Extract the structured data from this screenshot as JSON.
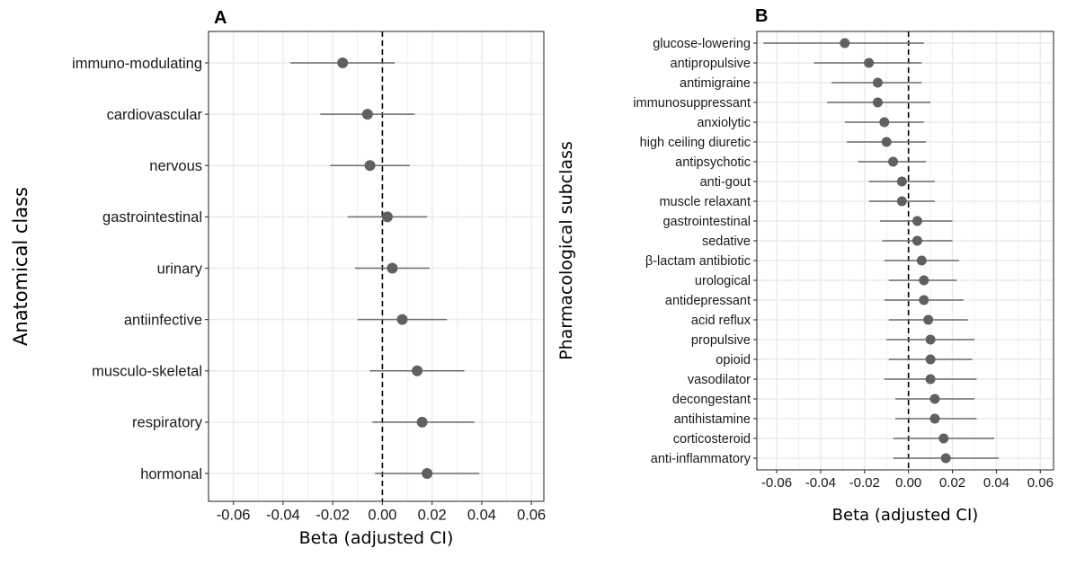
{
  "chart_data": [
    {
      "type": "scatter",
      "panel": "A",
      "xlabel": "Beta (adjusted CI)",
      "ylabel": "Anatomical class",
      "xlim": [
        -0.07,
        0.065
      ],
      "x_ticks": [
        -0.06,
        -0.04,
        -0.02,
        0.0,
        0.02,
        0.04,
        0.06
      ],
      "x_tick_labels": [
        "-0.06",
        "-0.04",
        "-0.02",
        "0.00",
        "0.02",
        "0.04",
        "0.06"
      ],
      "reference_line": 0,
      "grid": true,
      "points": [
        {
          "label": "immuno-modulating",
          "beta": -0.016,
          "lo": -0.037,
          "hi": 0.005
        },
        {
          "label": "cardiovascular",
          "beta": -0.006,
          "lo": -0.025,
          "hi": 0.013
        },
        {
          "label": "nervous",
          "beta": -0.005,
          "lo": -0.021,
          "hi": 0.011
        },
        {
          "label": "gastrointestinal",
          "beta": 0.002,
          "lo": -0.014,
          "hi": 0.018
        },
        {
          "label": "urinary",
          "beta": 0.004,
          "lo": -0.011,
          "hi": 0.019
        },
        {
          "label": "antiinfective",
          "beta": 0.008,
          "lo": -0.01,
          "hi": 0.026
        },
        {
          "label": "musculo-skeletal",
          "beta": 0.014,
          "lo": -0.005,
          "hi": 0.033
        },
        {
          "label": "respiratory",
          "beta": 0.016,
          "lo": -0.004,
          "hi": 0.037
        },
        {
          "label": "hormonal",
          "beta": 0.018,
          "lo": -0.003,
          "hi": 0.039
        }
      ]
    },
    {
      "type": "scatter",
      "panel": "B",
      "xlabel": "Beta (adjusted CI)",
      "ylabel": "Pharmacological subclass",
      "xlim": [
        -0.069,
        0.066
      ],
      "x_ticks": [
        -0.06,
        -0.04,
        -0.02,
        0.0,
        0.02,
        0.04,
        0.06
      ],
      "x_tick_labels": [
        "-0.06",
        "-0.04",
        "-0.02",
        "0.00",
        "0.02",
        "0.04",
        "0.06"
      ],
      "reference_line": 0,
      "grid": true,
      "points": [
        {
          "label": "glucose-lowering",
          "beta": -0.029,
          "lo": -0.066,
          "hi": 0.007
        },
        {
          "label": "antipropulsive",
          "beta": -0.018,
          "lo": -0.043,
          "hi": 0.006
        },
        {
          "label": "antimigraine",
          "beta": -0.014,
          "lo": -0.035,
          "hi": 0.006
        },
        {
          "label": "immunosuppressant",
          "beta": -0.014,
          "lo": -0.037,
          "hi": 0.01
        },
        {
          "label": "anxiolytic",
          "beta": -0.011,
          "lo": -0.029,
          "hi": 0.007
        },
        {
          "label": "high ceiling diuretic",
          "beta": -0.01,
          "lo": -0.028,
          "hi": 0.008
        },
        {
          "label": "antipsychotic",
          "beta": -0.007,
          "lo": -0.023,
          "hi": 0.008
        },
        {
          "label": "anti-gout",
          "beta": -0.003,
          "lo": -0.018,
          "hi": 0.012
        },
        {
          "label": "muscle relaxant",
          "beta": -0.003,
          "lo": -0.018,
          "hi": 0.012
        },
        {
          "label": "gastrointestinal",
          "beta": 0.004,
          "lo": -0.013,
          "hi": 0.02
        },
        {
          "label": "sedative",
          "beta": 0.004,
          "lo": -0.012,
          "hi": 0.02
        },
        {
          "label": "β-lactam antibiotic",
          "beta": 0.006,
          "lo": -0.011,
          "hi": 0.023
        },
        {
          "label": "urological",
          "beta": 0.007,
          "lo": -0.009,
          "hi": 0.022
        },
        {
          "label": "antidepressant",
          "beta": 0.007,
          "lo": -0.011,
          "hi": 0.025
        },
        {
          "label": "acid reflux",
          "beta": 0.009,
          "lo": -0.009,
          "hi": 0.027
        },
        {
          "label": "propulsive",
          "beta": 0.01,
          "lo": -0.01,
          "hi": 0.03
        },
        {
          "label": "opioid",
          "beta": 0.01,
          "lo": -0.009,
          "hi": 0.029
        },
        {
          "label": "vasodilator",
          "beta": 0.01,
          "lo": -0.011,
          "hi": 0.031
        },
        {
          "label": "decongestant",
          "beta": 0.012,
          "lo": -0.006,
          "hi": 0.03
        },
        {
          "label": "antihistamine",
          "beta": 0.012,
          "lo": -0.006,
          "hi": 0.031
        },
        {
          "label": "corticosteroid",
          "beta": 0.016,
          "lo": -0.007,
          "hi": 0.039
        },
        {
          "label": "anti-inflammatory",
          "beta": 0.017,
          "lo": -0.007,
          "hi": 0.041
        }
      ]
    }
  ],
  "colors": {
    "point": "#606060",
    "errorbar": "#6b6b6b",
    "grid": "#ebebeb",
    "panel_border": "#333333",
    "reference_line": "#000000"
  }
}
